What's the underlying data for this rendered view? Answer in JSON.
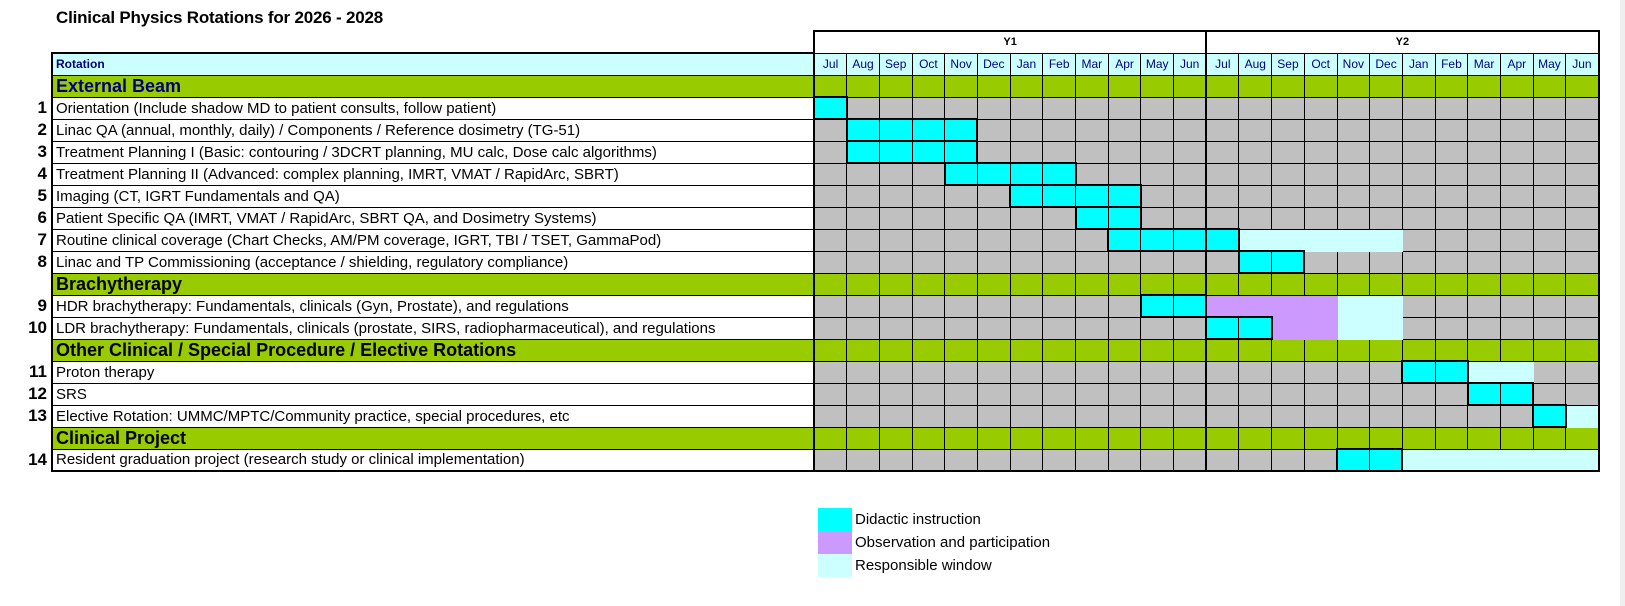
{
  "title": "Clinical Physics Rotations for 2026 - 2028",
  "colors": {
    "didactic": "#00ffff",
    "observation": "#cc99ff",
    "responsible": "#ccffff",
    "section": "#99cc00",
    "empty_cell": "#c0c0c0",
    "header_bg": "#ccffff",
    "header_text": "#000080"
  },
  "years": [
    {
      "label": "Y1",
      "months": [
        "Jul",
        "Aug",
        "Sep",
        "Oct",
        "Nov",
        "Dec",
        "Jan",
        "Feb",
        "Mar",
        "Apr",
        "May",
        "Jun"
      ]
    },
    {
      "label": "Y2",
      "months": [
        "Jul",
        "Aug",
        "Sep",
        "Oct",
        "Nov",
        "Dec",
        "Jan",
        "Feb",
        "Mar",
        "Apr",
        "May",
        "Jun"
      ]
    }
  ],
  "header": {
    "rotation_label": "Rotation"
  },
  "rows": [
    {
      "type": "section",
      "label": "External Beam",
      "navy": true
    },
    {
      "type": "rotation",
      "num": "1",
      "label": "Orientation (Include shadow MD to patient consults, follow patient)",
      "spans": [
        {
          "start": 0,
          "end": 0,
          "kind": "didactic"
        }
      ]
    },
    {
      "type": "rotation",
      "num": "2",
      "label": "Linac QA (annual, monthly, daily) / Components / Reference dosimetry (TG-51)",
      "spans": [
        {
          "start": 1,
          "end": 4,
          "kind": "didactic"
        }
      ]
    },
    {
      "type": "rotation",
      "num": "3",
      "label": "Treatment Planning I (Basic: contouring / 3DCRT planning, MU calc, Dose calc algorithms)",
      "spans": [
        {
          "start": 1,
          "end": 4,
          "kind": "didactic"
        }
      ]
    },
    {
      "type": "rotation",
      "num": "4",
      "label": "Treatment Planning II (Advanced: complex planning, IMRT, VMAT / RapidArc, SBRT)",
      "spans": [
        {
          "start": 4,
          "end": 7,
          "kind": "didactic"
        }
      ]
    },
    {
      "type": "rotation",
      "num": "5",
      "label": "Imaging (CT, IGRT Fundamentals and QA)",
      "spans": [
        {
          "start": 6,
          "end": 9,
          "kind": "didactic"
        }
      ]
    },
    {
      "type": "rotation",
      "num": "6",
      "label": "Patient Specific QA (IMRT, VMAT / RapidArc, SBRT QA, and Dosimetry Systems)",
      "spans": [
        {
          "start": 8,
          "end": 9,
          "kind": "didactic"
        }
      ]
    },
    {
      "type": "rotation",
      "num": "7",
      "label": "Routine clinical coverage (Chart Checks, AM/PM coverage, IGRT, TBI / TSET, GammaPod)",
      "spans": [
        {
          "start": 9,
          "end": 12,
          "kind": "didactic"
        },
        {
          "start": 13,
          "end": 17,
          "kind": "respons"
        }
      ]
    },
    {
      "type": "rotation",
      "num": "8",
      "label": "Linac and TP Commissioning (acceptance / shielding, regulatory compliance)",
      "spans": [
        {
          "start": 13,
          "end": 14,
          "kind": "didactic"
        }
      ]
    },
    {
      "type": "section",
      "label": "Brachytherapy"
    },
    {
      "type": "rotation",
      "num": "9",
      "label": "HDR brachytherapy: Fundamentals, clinicals (Gyn, Prostate), and regulations",
      "spans": [
        {
          "start": 10,
          "end": 11,
          "kind": "didactic"
        },
        {
          "start": 12,
          "end": 15,
          "kind": "observe"
        },
        {
          "start": 16,
          "end": 17,
          "kind": "respons"
        }
      ]
    },
    {
      "type": "rotation",
      "num": "10",
      "label": "LDR brachytherapy: Fundamentals, clinicals (prostate, SIRS, radiopharmaceutical), and regulations",
      "spans": [
        {
          "start": 12,
          "end": 13,
          "kind": "didactic"
        },
        {
          "start": 14,
          "end": 15,
          "kind": "observe"
        },
        {
          "start": 16,
          "end": 17,
          "kind": "respons"
        }
      ]
    },
    {
      "type": "section",
      "label": "Other Clinical / Special Procedure / Elective Rotations"
    },
    {
      "type": "rotation",
      "num": "11",
      "label": "Proton therapy",
      "spans": [
        {
          "start": 18,
          "end": 19,
          "kind": "didactic"
        },
        {
          "start": 20,
          "end": 21,
          "kind": "respons"
        }
      ]
    },
    {
      "type": "rotation",
      "num": "12",
      "label": "SRS",
      "spans": [
        {
          "start": 20,
          "end": 21,
          "kind": "didactic"
        }
      ]
    },
    {
      "type": "rotation",
      "num": "13",
      "label": "Elective Rotation: UMMC/MPTC/Community practice, special procedures, etc",
      "spans": [
        {
          "start": 22,
          "end": 22,
          "kind": "didactic"
        },
        {
          "start": 23,
          "end": 23,
          "kind": "respons"
        }
      ]
    },
    {
      "type": "section",
      "label": "Clinical Project"
    },
    {
      "type": "rotation",
      "num": "14",
      "label": "Resident graduation project (research study or clinical implementation)",
      "spans": [
        {
          "start": 16,
          "end": 17,
          "kind": "didactic"
        },
        {
          "start": 18,
          "end": 23,
          "kind": "respons"
        }
      ]
    }
  ],
  "legend": [
    {
      "kind": "didactic",
      "label": "Didactic instruction",
      "color": "#00ffff"
    },
    {
      "kind": "observe",
      "label": "Observation and participation",
      "color": "#cc99ff"
    },
    {
      "kind": "respons",
      "label": "Responsible window",
      "color": "#ccffff"
    }
  ]
}
